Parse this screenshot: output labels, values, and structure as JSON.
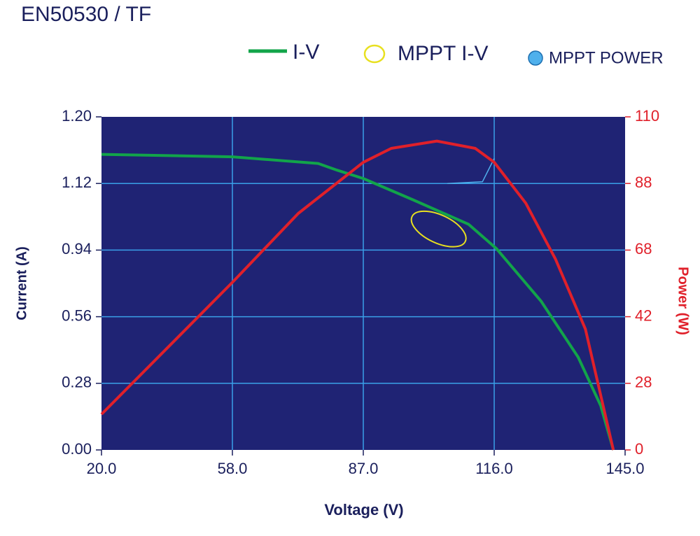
{
  "chart_data": {
    "type": "line",
    "title": "EN50530 / TF",
    "x_label": "Voltage (V)",
    "y_label": "Current (A)",
    "y2_label": "Power (W)",
    "xlim": [
      20,
      145
    ],
    "xticks": [
      {
        "value": 20,
        "label": "20.0"
      },
      {
        "value": 58,
        "label": "58.0"
      },
      {
        "value": 87,
        "label": "87.0"
      },
      {
        "value": 116,
        "label": "116.0"
      },
      {
        "value": 145,
        "label": "145.0"
      }
    ],
    "ylim": [
      0,
      1.2
    ],
    "yticks": [
      {
        "value": 0,
        "label": "0.00"
      },
      0.28,
      0.56,
      0.94,
      1.12,
      {
        "value": 1.2,
        "label": "1.20"
      }
    ],
    "y2lim": [
      0,
      110
    ],
    "y2ticks": [
      0,
      28,
      42,
      68,
      88,
      110
    ],
    "grid": true,
    "series": [
      {
        "name": "I-V",
        "color": "#12a44a",
        "x": [
          20,
          58,
          77,
          81.2,
          87,
          98,
          110.3,
          116.5,
          126.4,
          134.6,
          139.6,
          142.4
        ],
        "values": [
          1.155,
          1.152,
          1.144,
          1.136,
          1.126,
          1.076,
          1.01,
          0.944,
          0.648,
          0.39,
          0.186,
          0
        ]
      },
      {
        "name": "MPPT I-V",
        "color": "#e8e020",
        "marker": "ellipse",
        "x": [
          103.7
        ],
        "values": [
          0.997
        ]
      },
      {
        "name": "MPPT POWER",
        "color": "#4fb0ec",
        "x": [
          105.6,
          113.4,
          116
        ],
        "values": [
          1.12,
          1.122,
          1.15
        ]
      },
      {
        "name": "Power",
        "color": "#e0202a",
        "axis": "y2",
        "x": [
          20,
          58,
          72.6,
          87,
          93.2,
          103.3,
          111.8,
          116,
          123,
          129.6,
          136.2,
          142.4
        ],
        "values": [
          15,
          55.4,
          79,
          95,
          99.6,
          102,
          99.6,
          95,
          82.1,
          64.4,
          39.4,
          0
        ]
      }
    ]
  }
}
